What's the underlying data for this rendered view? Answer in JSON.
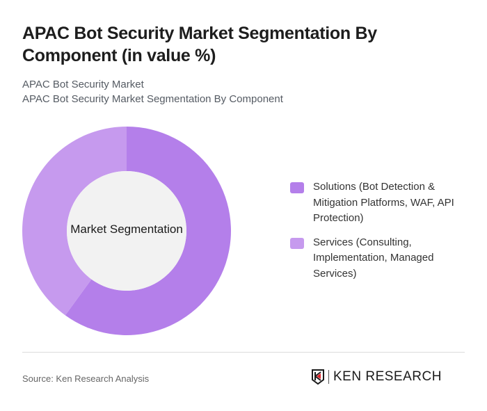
{
  "header": {
    "title": "APAC Bot Security Market Segmentation By Component (in value %)",
    "subtitle1": "APAC Bot Security Market",
    "subtitle2": "APAC Bot Security Market Segmentation By Component"
  },
  "chart_data": {
    "type": "pie",
    "variant": "donut",
    "title": "APAC Bot Security Market Segmentation By Component (in value %)",
    "center_label": "Market Segmentation",
    "categories": [
      "Solutions (Bot Detection & Mitigation Platforms, WAF, API Protection)",
      "Services (Consulting, Implementation, Managed Services)"
    ],
    "values": [
      60,
      40
    ],
    "colors": [
      "#b47fea",
      "#c69aee"
    ],
    "legend_position": "right"
  },
  "legend": {
    "items": [
      {
        "label": "Solutions (Bot Detection & Mitigation Platforms, WAF, API Protection)",
        "color": "#b47fea"
      },
      {
        "label": "Services (Consulting, Implementation, Managed Services)",
        "color": "#c69aee"
      }
    ]
  },
  "footer": {
    "source": "Source: Ken Research Analysis",
    "logo_text": "KEN RESEARCH"
  }
}
